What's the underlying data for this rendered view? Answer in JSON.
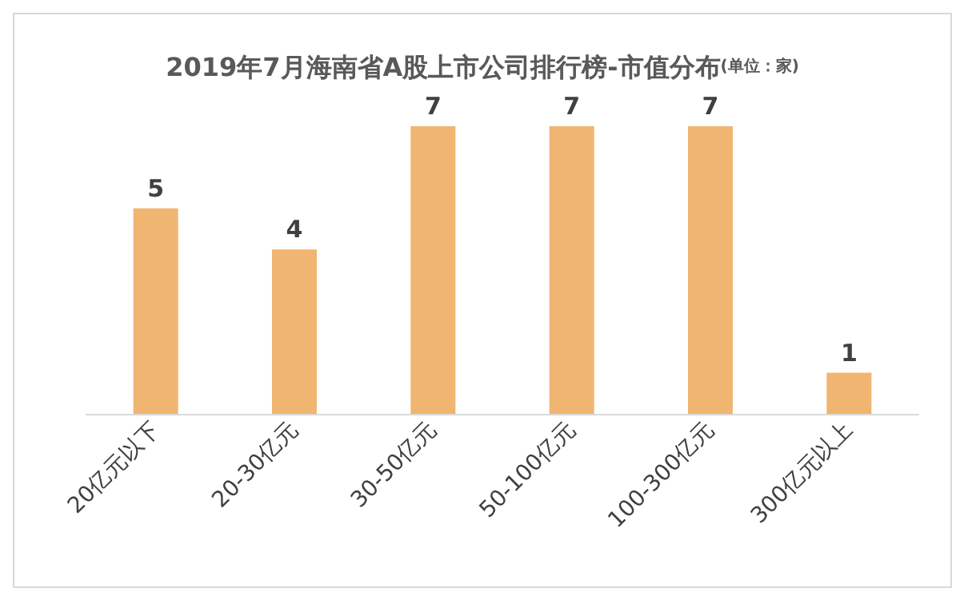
{
  "chart_data": {
    "type": "bar",
    "title": "2019年7月海南省A股上市公司排行榜-市值分布",
    "subtitle": "(单位：家)",
    "categories": [
      "20亿元以下",
      "20-30亿元",
      "30-50亿元",
      "50-100亿元",
      "100-300亿元",
      "300亿元以上"
    ],
    "values": [
      5,
      4,
      7,
      7,
      7,
      1
    ],
    "color": "#f0b571",
    "data_labels": true
  }
}
